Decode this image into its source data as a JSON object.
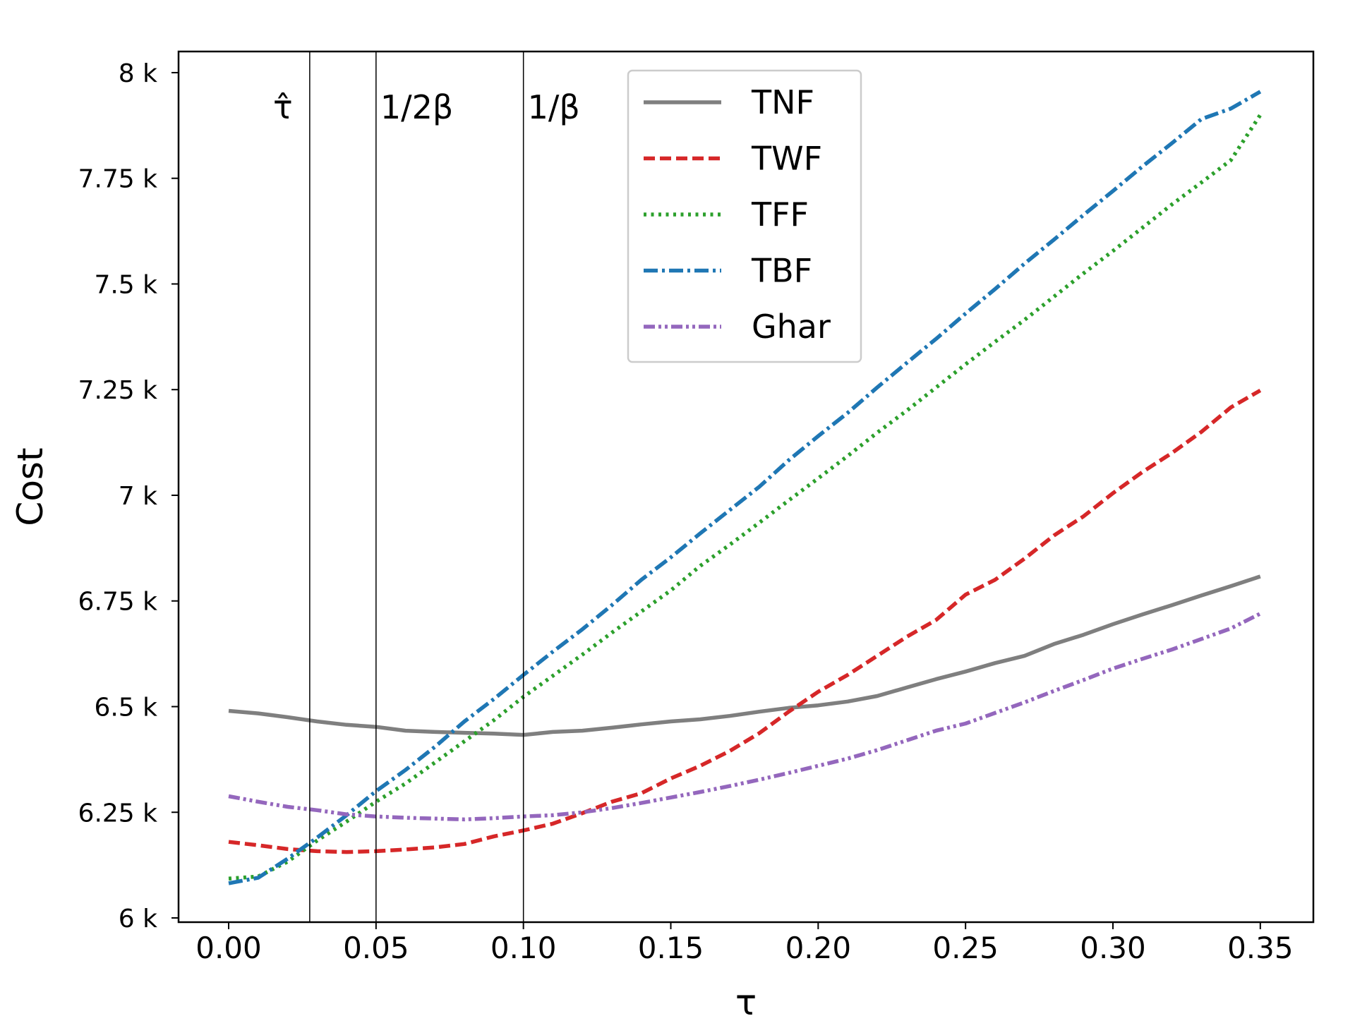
{
  "chart_data": {
    "type": "line",
    "xlabel": "τ",
    "ylabel": "Cost",
    "xlim": [
      -0.017,
      0.368
    ],
    "ylim": [
      5990,
      8050
    ],
    "x_ticks": [
      0.0,
      0.05,
      0.1,
      0.15,
      0.2,
      0.25,
      0.3,
      0.35
    ],
    "x_tick_labels": [
      "0.00",
      "0.05",
      "0.10",
      "0.15",
      "0.20",
      "0.25",
      "0.30",
      "0.35"
    ],
    "y_ticks": [
      6000,
      6250,
      6500,
      6750,
      7000,
      7250,
      7500,
      7750,
      8000
    ],
    "y_tick_labels": [
      "6 k",
      "6.25 k",
      "6.5 k",
      "6.75 k",
      "7 k",
      "7.25 k",
      "7.5 k",
      "7.75 k",
      "8 k"
    ],
    "grid": false,
    "legend_position": "top-center",
    "vertical_lines": [
      {
        "x": 0.0275,
        "label": "τ̂"
      },
      {
        "x": 0.05,
        "label": "1/2β"
      },
      {
        "x": 0.1,
        "label": "1/β"
      }
    ],
    "series": [
      {
        "name": "TNF",
        "color": "#7f7f7f",
        "dash": "solid",
        "points": [
          [
            0.0,
            6490
          ],
          [
            0.01,
            6484
          ],
          [
            0.02,
            6475
          ],
          [
            0.03,
            6465
          ],
          [
            0.04,
            6457
          ],
          [
            0.05,
            6452
          ],
          [
            0.06,
            6443
          ],
          [
            0.07,
            6440
          ],
          [
            0.08,
            6438
          ],
          [
            0.09,
            6436
          ],
          [
            0.1,
            6433
          ],
          [
            0.11,
            6440
          ],
          [
            0.12,
            6443
          ],
          [
            0.13,
            6450
          ],
          [
            0.14,
            6458
          ],
          [
            0.15,
            6465
          ],
          [
            0.16,
            6470
          ],
          [
            0.17,
            6478
          ],
          [
            0.18,
            6488
          ],
          [
            0.19,
            6497
          ],
          [
            0.2,
            6503
          ],
          [
            0.21,
            6512
          ],
          [
            0.22,
            6525
          ],
          [
            0.23,
            6545
          ],
          [
            0.24,
            6565
          ],
          [
            0.25,
            6583
          ],
          [
            0.26,
            6603
          ],
          [
            0.27,
            6620
          ],
          [
            0.28,
            6648
          ],
          [
            0.29,
            6670
          ],
          [
            0.3,
            6695
          ],
          [
            0.31,
            6718
          ],
          [
            0.32,
            6740
          ],
          [
            0.33,
            6763
          ],
          [
            0.34,
            6785
          ],
          [
            0.35,
            6808
          ]
        ]
      },
      {
        "name": "TWF",
        "color": "#d62728",
        "dash": "dashed",
        "points": [
          [
            0.0,
            6180
          ],
          [
            0.01,
            6172
          ],
          [
            0.02,
            6163
          ],
          [
            0.03,
            6158
          ],
          [
            0.04,
            6156
          ],
          [
            0.05,
            6158
          ],
          [
            0.06,
            6162
          ],
          [
            0.07,
            6167
          ],
          [
            0.08,
            6175
          ],
          [
            0.09,
            6193
          ],
          [
            0.1,
            6207
          ],
          [
            0.11,
            6223
          ],
          [
            0.12,
            6248
          ],
          [
            0.13,
            6275
          ],
          [
            0.14,
            6295
          ],
          [
            0.15,
            6330
          ],
          [
            0.16,
            6360
          ],
          [
            0.17,
            6395
          ],
          [
            0.18,
            6437
          ],
          [
            0.19,
            6488
          ],
          [
            0.2,
            6535
          ],
          [
            0.21,
            6575
          ],
          [
            0.22,
            6620
          ],
          [
            0.23,
            6665
          ],
          [
            0.24,
            6705
          ],
          [
            0.25,
            6765
          ],
          [
            0.26,
            6800
          ],
          [
            0.27,
            6850
          ],
          [
            0.28,
            6905
          ],
          [
            0.29,
            6950
          ],
          [
            0.3,
            7005
          ],
          [
            0.31,
            7055
          ],
          [
            0.32,
            7100
          ],
          [
            0.33,
            7150
          ],
          [
            0.34,
            7208
          ],
          [
            0.35,
            7248
          ]
        ]
      },
      {
        "name": "TFF",
        "color": "#2ca02c",
        "dash": "dotted",
        "points": [
          [
            0.0,
            6093
          ],
          [
            0.01,
            6098
          ],
          [
            0.02,
            6133
          ],
          [
            0.03,
            6183
          ],
          [
            0.04,
            6228
          ],
          [
            0.05,
            6275
          ],
          [
            0.06,
            6318
          ],
          [
            0.07,
            6368
          ],
          [
            0.08,
            6418
          ],
          [
            0.09,
            6468
          ],
          [
            0.1,
            6523
          ],
          [
            0.11,
            6573
          ],
          [
            0.12,
            6623
          ],
          [
            0.13,
            6675
          ],
          [
            0.14,
            6725
          ],
          [
            0.15,
            6775
          ],
          [
            0.16,
            6833
          ],
          [
            0.17,
            6883
          ],
          [
            0.18,
            6935
          ],
          [
            0.19,
            6988
          ],
          [
            0.2,
            7040
          ],
          [
            0.21,
            7093
          ],
          [
            0.22,
            7148
          ],
          [
            0.23,
            7200
          ],
          [
            0.24,
            7255
          ],
          [
            0.25,
            7310
          ],
          [
            0.26,
            7363
          ],
          [
            0.27,
            7415
          ],
          [
            0.28,
            7470
          ],
          [
            0.29,
            7525
          ],
          [
            0.3,
            7578
          ],
          [
            0.31,
            7633
          ],
          [
            0.32,
            7688
          ],
          [
            0.33,
            7740
          ],
          [
            0.34,
            7793
          ],
          [
            0.35,
            7900
          ]
        ]
      },
      {
        "name": "TBF",
        "color": "#1f77b4",
        "dash": "dashdot",
        "points": [
          [
            0.0,
            6082
          ],
          [
            0.01,
            6095
          ],
          [
            0.02,
            6140
          ],
          [
            0.03,
            6190
          ],
          [
            0.04,
            6243
          ],
          [
            0.05,
            6300
          ],
          [
            0.06,
            6350
          ],
          [
            0.07,
            6405
          ],
          [
            0.08,
            6465
          ],
          [
            0.09,
            6518
          ],
          [
            0.1,
            6575
          ],
          [
            0.11,
            6630
          ],
          [
            0.12,
            6683
          ],
          [
            0.13,
            6740
          ],
          [
            0.14,
            6800
          ],
          [
            0.15,
            6853
          ],
          [
            0.16,
            6910
          ],
          [
            0.17,
            6965
          ],
          [
            0.18,
            7020
          ],
          [
            0.19,
            7083
          ],
          [
            0.2,
            7140
          ],
          [
            0.21,
            7195
          ],
          [
            0.22,
            7255
          ],
          [
            0.23,
            7313
          ],
          [
            0.24,
            7370
          ],
          [
            0.25,
            7430
          ],
          [
            0.26,
            7488
          ],
          [
            0.27,
            7548
          ],
          [
            0.28,
            7605
          ],
          [
            0.29,
            7663
          ],
          [
            0.3,
            7720
          ],
          [
            0.31,
            7778
          ],
          [
            0.32,
            7833
          ],
          [
            0.33,
            7890
          ],
          [
            0.34,
            7915
          ],
          [
            0.35,
            7955
          ]
        ]
      },
      {
        "name": "Ghar",
        "color": "#9467bd",
        "dash": "dashdotdot",
        "points": [
          [
            0.0,
            6288
          ],
          [
            0.01,
            6275
          ],
          [
            0.02,
            6263
          ],
          [
            0.03,
            6255
          ],
          [
            0.04,
            6245
          ],
          [
            0.05,
            6240
          ],
          [
            0.06,
            6237
          ],
          [
            0.07,
            6235
          ],
          [
            0.08,
            6233
          ],
          [
            0.09,
            6236
          ],
          [
            0.1,
            6240
          ],
          [
            0.11,
            6243
          ],
          [
            0.12,
            6250
          ],
          [
            0.13,
            6260
          ],
          [
            0.14,
            6272
          ],
          [
            0.15,
            6285
          ],
          [
            0.16,
            6298
          ],
          [
            0.17,
            6312
          ],
          [
            0.18,
            6327
          ],
          [
            0.19,
            6343
          ],
          [
            0.2,
            6360
          ],
          [
            0.21,
            6377
          ],
          [
            0.22,
            6397
          ],
          [
            0.23,
            6420
          ],
          [
            0.24,
            6443
          ],
          [
            0.25,
            6460
          ],
          [
            0.26,
            6485
          ],
          [
            0.27,
            6510
          ],
          [
            0.28,
            6537
          ],
          [
            0.29,
            6563
          ],
          [
            0.3,
            6590
          ],
          [
            0.31,
            6613
          ],
          [
            0.32,
            6635
          ],
          [
            0.33,
            6660
          ],
          [
            0.34,
            6685
          ],
          [
            0.35,
            6720
          ]
        ]
      }
    ]
  }
}
